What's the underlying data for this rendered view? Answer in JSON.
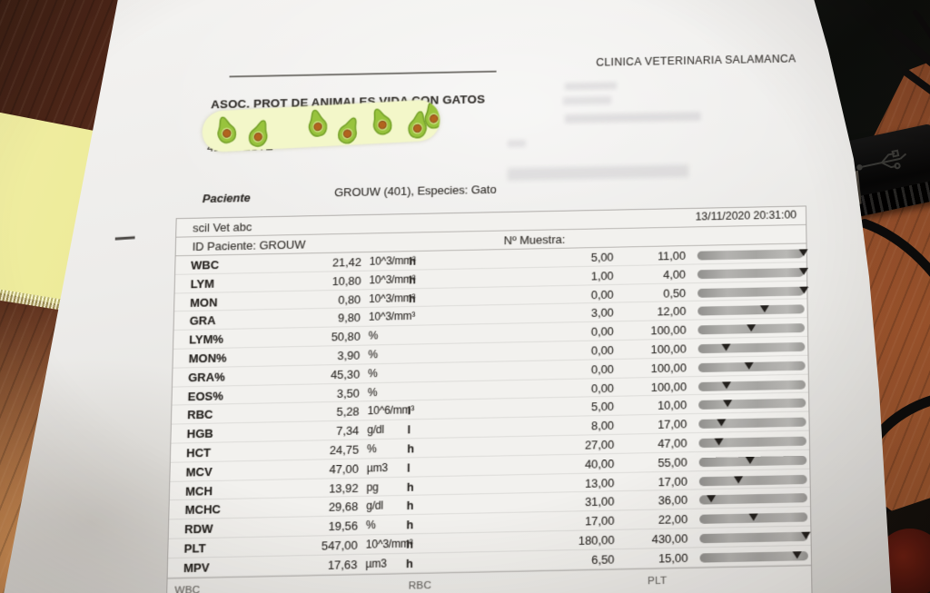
{
  "photo": {
    "clinic_name": "CLINICA VETERINARIA SALAMANCA",
    "org_name": "ASOC. PROT DE ANIMALES VIDA CON GATOS",
    "address_partial": "41560 ESTE",
    "patient_label": "Paciente",
    "patient_info": "GROUW (401), Especies: Gato",
    "analyzer_name": "scil Vet abc",
    "datetime": "13/11/2020 20:31:00",
    "patient_id_label": "ID Paciente: GROUW",
    "sample_label": "Nº Muestra:",
    "histogram_labels": [
      "WBC",
      "RBC",
      "PLT"
    ]
  },
  "results": {
    "columns": [
      "parameter",
      "value",
      "unit",
      "flag",
      "ref_low",
      "ref_high",
      "range_bar"
    ],
    "rows": [
      {
        "name": "WBC",
        "value": "21,42",
        "unit": "10^3/mm³",
        "flag": "h",
        "low": "5,00",
        "high": "11,00",
        "v": 21.42,
        "lo": 5.0,
        "hi": 11.0
      },
      {
        "name": "LYM",
        "value": "10,80",
        "unit": "10^3/mm³",
        "flag": "h",
        "low": "1,00",
        "high": "4,00",
        "v": 10.8,
        "lo": 1.0,
        "hi": 4.0
      },
      {
        "name": "MON",
        "value": "0,80",
        "unit": "10^3/mm³",
        "flag": "h",
        "low": "0,00",
        "high": "0,50",
        "v": 0.8,
        "lo": 0.0,
        "hi": 0.5
      },
      {
        "name": "GRA",
        "value": "9,80",
        "unit": "10^3/mm³",
        "flag": "",
        "low": "3,00",
        "high": "12,00",
        "v": 9.8,
        "lo": 3.0,
        "hi": 12.0
      },
      {
        "name": "LYM%",
        "value": "50,80",
        "unit": "%",
        "flag": "",
        "low": "0,00",
        "high": "100,00",
        "v": 50.8,
        "lo": 0,
        "hi": 100
      },
      {
        "name": "MON%",
        "value": "3,90",
        "unit": "%",
        "flag": "",
        "low": "0,00",
        "high": "100,00",
        "v": 3.9,
        "lo": 0,
        "hi": 100
      },
      {
        "name": "GRA%",
        "value": "45,30",
        "unit": "%",
        "flag": "",
        "low": "0,00",
        "high": "100,00",
        "v": 45.3,
        "lo": 0,
        "hi": 100
      },
      {
        "name": "EOS%",
        "value": "3,50",
        "unit": "%",
        "flag": "",
        "low": "0,00",
        "high": "100,00",
        "v": 3.5,
        "lo": 0,
        "hi": 100
      },
      {
        "name": "RBC",
        "value": "5,28",
        "unit": "10^6/mm³",
        "flag": "l",
        "low": "5,00",
        "high": "10,00",
        "v": 5.28,
        "lo": 5.0,
        "hi": 10.0
      },
      {
        "name": "HGB",
        "value": "7,34",
        "unit": "g/dl",
        "flag": "l",
        "low": "8,00",
        "high": "17,00",
        "v": 7.34,
        "lo": 8.0,
        "hi": 17.0
      },
      {
        "name": "HCT",
        "value": "24,75",
        "unit": "%",
        "flag": "h",
        "low": "27,00",
        "high": "47,00",
        "v": 24.75,
        "lo": 27.0,
        "hi": 47.0
      },
      {
        "name": "MCV",
        "value": "47,00",
        "unit": "µm3",
        "flag": "l",
        "low": "40,00",
        "high": "55,00",
        "v": 47.0,
        "lo": 40.0,
        "hi": 55.0
      },
      {
        "name": "MCH",
        "value": "13,92",
        "unit": "pg",
        "flag": "h",
        "low": "13,00",
        "high": "17,00",
        "v": 13.92,
        "lo": 13.0,
        "hi": 17.0
      },
      {
        "name": "MCHC",
        "value": "29,68",
        "unit": "g/dl",
        "flag": "h",
        "low": "31,00",
        "high": "36,00",
        "v": 29.68,
        "lo": 31.0,
        "hi": 36.0
      },
      {
        "name": "RDW",
        "value": "19,56",
        "unit": "%",
        "flag": "h",
        "low": "17,00",
        "high": "22,00",
        "v": 19.56,
        "lo": 17.0,
        "hi": 22.0
      },
      {
        "name": "PLT",
        "value": "547,00",
        "unit": "10^3/mm³",
        "flag": "h",
        "low": "180,00",
        "high": "430,00",
        "v": 547.0,
        "lo": 180.0,
        "hi": 430.0
      },
      {
        "name": "MPV",
        "value": "17,63",
        "unit": "µm3",
        "flag": "h",
        "low": "6,50",
        "high": "15,00",
        "v": 17.63,
        "lo": 6.5,
        "hi": 15.0
      }
    ]
  },
  "colors": {
    "desk_wood": "#7a3b24",
    "paper": "#eceae7",
    "sticky_note": "#eeeb9c",
    "range_bar": "#a6a5a2",
    "marker": "#23201d",
    "sticker_bg": "#f3f7c9",
    "avocado_green": "#98c33d",
    "avocado_pit": "#b2641f"
  }
}
